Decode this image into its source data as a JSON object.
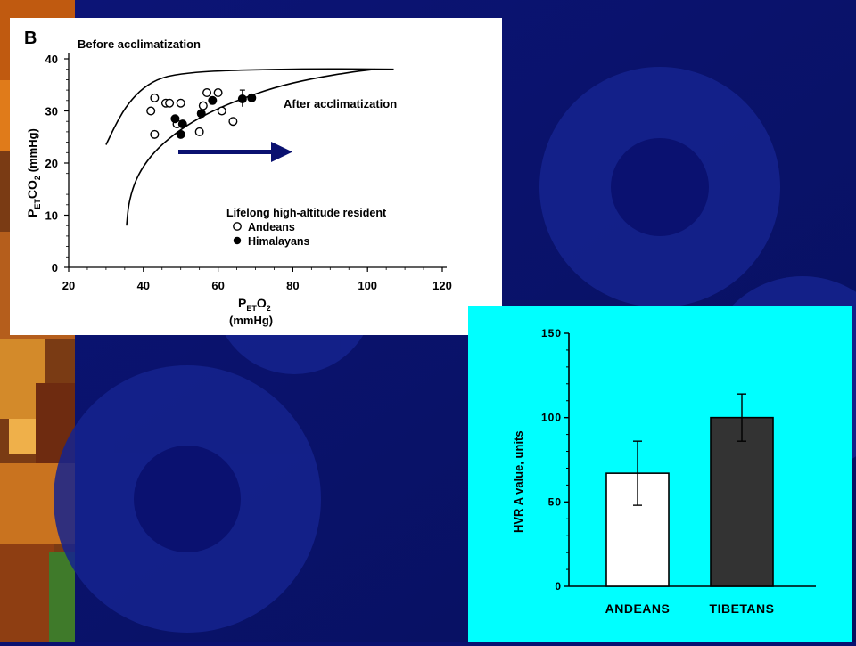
{
  "colors": {
    "background": "#0a1170",
    "panel_left_bg": "#ffffff",
    "panel_right_bg": "#00ffff",
    "arrow": "#0a1170",
    "ink": "#000000",
    "tibetans_bar": "#333333"
  },
  "chart_data": [
    {
      "type": "scatter",
      "panel_label": "B",
      "xlabel_main": "P",
      "xlabel_sub": "ET",
      "xlabel_rest": "O",
      "xlabel_sub2": "2",
      "xlabel_unit": "(mmHg)",
      "ylabel_main": "P",
      "ylabel_sub": "ET",
      "ylabel_rest": "CO",
      "ylabel_sub2": "2",
      "ylabel_unit": "(mmHg)",
      "xlim": [
        20,
        120
      ],
      "ylim": [
        0,
        40
      ],
      "xticks": [
        "20",
        "40",
        "60",
        "80",
        "100",
        "120"
      ],
      "yticks": [
        "0",
        "10",
        "20",
        "30",
        "40"
      ],
      "curve_labels": {
        "before": "Before acclimatization",
        "after": "After acclimatization"
      },
      "curves": {
        "before": [
          [
            30,
            23.5
          ],
          [
            33,
            28
          ],
          [
            36,
            31.5
          ],
          [
            40,
            34.5
          ],
          [
            45,
            36.5
          ],
          [
            52,
            37.3
          ],
          [
            60,
            37.7
          ],
          [
            75,
            38
          ],
          [
            90,
            38.1
          ],
          [
            107,
            38
          ]
        ],
        "after": [
          [
            35.5,
            8
          ],
          [
            36,
            12
          ],
          [
            37.5,
            16
          ],
          [
            40,
            19.5
          ],
          [
            44,
            23
          ],
          [
            50,
            26.5
          ],
          [
            57,
            29.5
          ],
          [
            65,
            32
          ],
          [
            75,
            34.5
          ],
          [
            85,
            36.2
          ],
          [
            96,
            37.5
          ],
          [
            102,
            38
          ]
        ]
      },
      "legend_title": "Lifelong high-altitude resident",
      "series": [
        {
          "name": "Andeans",
          "marker": "open-circle",
          "points": [
            [
              43,
              32.5
            ],
            [
              42,
              30
            ],
            [
              46,
              31.5
            ],
            [
              47,
              31.5
            ],
            [
              50,
              31.5
            ],
            [
              43,
              25.5
            ],
            [
              55,
              26
            ],
            [
              56,
              31
            ],
            [
              57,
              33.5
            ],
            [
              60,
              33.5
            ],
            [
              61,
              30
            ],
            [
              64,
              28
            ],
            [
              49,
              27.5
            ]
          ]
        },
        {
          "name": "Himalayans",
          "marker": "filled-circle",
          "points": [
            [
              48.5,
              28.5
            ],
            [
              50,
              25.5
            ],
            [
              50.5,
              27.5
            ],
            [
              55.5,
              29.5
            ],
            [
              58.5,
              32
            ],
            [
              66.5,
              32.3
            ],
            [
              69,
              32.5
            ]
          ]
        }
      ]
    },
    {
      "type": "bar",
      "ylabel": "HVR A value, units",
      "ylim": [
        0,
        150
      ],
      "yticks": [
        "0",
        "50",
        "100",
        "150"
      ],
      "categories": [
        "ANDEANS",
        "TIBETANS"
      ],
      "values": [
        67,
        100
      ],
      "error_low": [
        48,
        86
      ],
      "error_high": [
        86,
        114
      ]
    }
  ]
}
